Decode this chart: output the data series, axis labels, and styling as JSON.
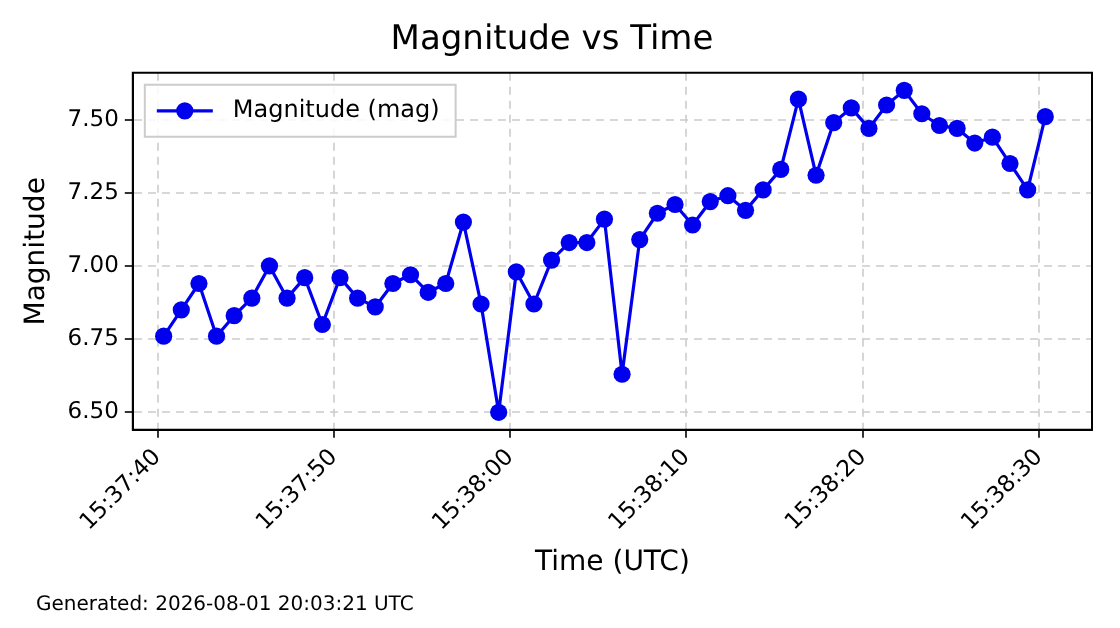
{
  "chart_data": {
    "type": "line",
    "title": "Magnitude vs Time",
    "xlabel": "Time (UTC)",
    "ylabel": "Magnitude",
    "annotations": [
      "Generated: 2026-08-01 20:03:21 UTC"
    ],
    "x": [
      15.627875,
      15.628153,
      15.628431,
      15.628708,
      15.628986,
      15.629264,
      15.629542,
      15.629819,
      15.630097,
      15.630375,
      15.630653,
      15.630931,
      15.631208,
      15.631486,
      15.631764,
      15.632042,
      15.632319,
      15.632597,
      15.632875,
      15.633153,
      15.633431,
      15.633708,
      15.633986,
      15.634264,
      15.634542,
      15.634819,
      15.635097,
      15.635375,
      15.635653,
      15.635931,
      15.636208,
      15.636486,
      15.636764,
      15.637042,
      15.637319,
      15.637597,
      15.637875,
      15.638153,
      15.638431,
      15.638708,
      15.638986,
      15.639264,
      15.639542,
      15.639819,
      15.640097,
      15.640375,
      15.640653,
      15.640931,
      15.641208,
      15.641486,
      15.641764
    ],
    "series": [
      {
        "name": "Magnitude (mag)",
        "color": "#0000ee",
        "values": [
          6.76,
          6.85,
          6.94,
          6.76,
          6.83,
          6.89,
          7.0,
          6.89,
          6.96,
          6.8,
          6.96,
          6.89,
          6.86,
          6.94,
          6.97,
          6.91,
          6.94,
          7.15,
          6.87,
          6.5,
          6.98,
          6.87,
          7.02,
          7.08,
          7.08,
          7.16,
          6.63,
          7.09,
          7.18,
          7.21,
          7.14,
          7.22,
          7.24,
          7.19,
          7.26,
          7.33,
          7.57,
          7.31,
          7.49,
          7.54,
          7.47,
          7.55,
          7.6,
          7.52,
          7.48,
          7.47,
          7.42,
          7.44,
          7.35,
          7.26,
          7.51
        ]
      }
    ],
    "xlim": [
      15.627389,
      15.6425
    ],
    "xticks": [
      {
        "value": 15.627778,
        "label": "15:37:40"
      },
      {
        "value": 15.630556,
        "label": "15:37:50"
      },
      {
        "value": 15.633333,
        "label": "15:38:00"
      },
      {
        "value": 15.636111,
        "label": "15:38:10"
      },
      {
        "value": 15.638889,
        "label": "15:38:20"
      },
      {
        "value": 15.641667,
        "label": "15:38:30"
      }
    ],
    "ylim": [
      6.44,
      7.66
    ],
    "yticks": [
      {
        "value": 6.5,
        "label": "6.50"
      },
      {
        "value": 6.75,
        "label": "6.75"
      },
      {
        "value": 7,
        "label": "7.00"
      },
      {
        "value": 7.25,
        "label": "7.25"
      },
      {
        "value": 7.5,
        "label": "7.50"
      }
    ],
    "grid": true,
    "legend": "top left",
    "marker": "circle",
    "line_style": "solid"
  }
}
